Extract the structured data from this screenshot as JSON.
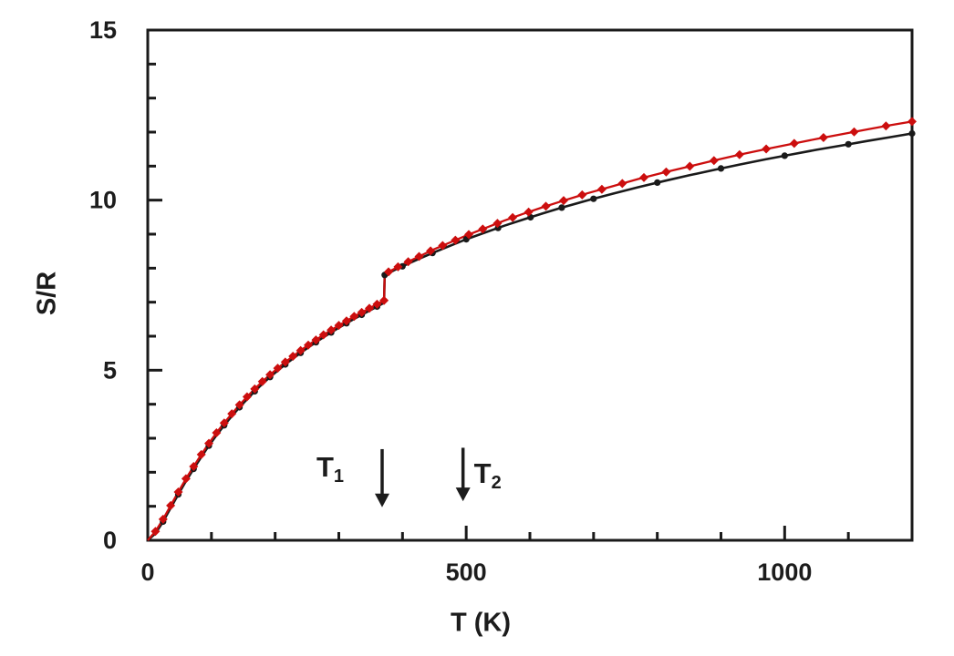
{
  "figure": {
    "background": "#ffffff",
    "frame_color": "#1a1a1a",
    "text_color": "#1c1c1c",
    "accent_red": "#cc0e0e"
  },
  "chart_data": {
    "type": "line",
    "title": "",
    "xlabel": "T (K)",
    "ylabel": "S/R",
    "xlim": [
      0,
      1200
    ],
    "ylim": [
      0,
      15
    ],
    "grid": false,
    "legend": null,
    "x_major_ticks": [
      0,
      500,
      1000
    ],
    "x_tick_labels": [
      "0",
      "500",
      "1000"
    ],
    "x_minor_step": 100,
    "y_major_ticks": [
      0,
      5,
      10,
      15
    ],
    "y_tick_labels": [
      "0",
      "5",
      "10",
      "15"
    ],
    "y_minor_step": 1,
    "annotations": [
      {
        "text": "T",
        "sub": "1",
        "arrow_T": 368,
        "arrow_S_top": 2.68,
        "arrow_S_tip": 0.97,
        "side": "left"
      },
      {
        "text": "T",
        "sub": "2",
        "arrow_T": 495,
        "arrow_S_top": 2.72,
        "arrow_S_tip": 1.15,
        "side": "right"
      }
    ],
    "series": [
      {
        "name": "black-curve",
        "color": "#1a1a1a",
        "marker": "circle",
        "transition_T": 372,
        "branch1": [
          [
            0,
            0
          ],
          [
            12,
            0.2
          ],
          [
            24,
            0.55
          ],
          [
            36,
            0.95
          ],
          [
            48,
            1.35
          ],
          [
            60,
            1.74
          ],
          [
            72,
            2.1
          ],
          [
            84,
            2.45
          ],
          [
            96,
            2.78
          ],
          [
            108,
            3.09
          ],
          [
            120,
            3.38
          ],
          [
            132,
            3.65
          ],
          [
            144,
            3.91
          ],
          [
            156,
            4.15
          ],
          [
            168,
            4.38
          ],
          [
            180,
            4.6
          ],
          [
            192,
            4.8
          ],
          [
            204,
            4.99
          ],
          [
            216,
            5.17
          ],
          [
            228,
            5.34
          ],
          [
            240,
            5.51
          ],
          [
            252,
            5.67
          ],
          [
            264,
            5.82
          ],
          [
            276,
            5.97
          ],
          [
            288,
            6.11
          ],
          [
            300,
            6.25
          ],
          [
            312,
            6.38
          ],
          [
            324,
            6.51
          ],
          [
            336,
            6.63
          ],
          [
            348,
            6.75
          ],
          [
            360,
            6.87
          ],
          [
            371,
            6.98
          ]
        ],
        "branch2": [
          [
            372,
            7.8
          ],
          [
            390,
            7.97
          ],
          [
            410,
            8.14
          ],
          [
            430,
            8.31
          ],
          [
            450,
            8.47
          ],
          [
            475,
            8.66
          ],
          [
            500,
            8.85
          ],
          [
            530,
            9.05
          ],
          [
            560,
            9.25
          ],
          [
            590,
            9.43
          ],
          [
            620,
            9.61
          ],
          [
            650,
            9.78
          ],
          [
            690,
            9.99
          ],
          [
            730,
            10.19
          ],
          [
            770,
            10.38
          ],
          [
            810,
            10.56
          ],
          [
            850,
            10.73
          ],
          [
            890,
            10.89
          ],
          [
            930,
            11.05
          ],
          [
            970,
            11.2
          ],
          [
            1010,
            11.34
          ],
          [
            1050,
            11.48
          ],
          [
            1090,
            11.61
          ],
          [
            1130,
            11.74
          ],
          [
            1165,
            11.85
          ],
          [
            1200,
            11.96
          ]
        ],
        "marker_T_branch1": [
          24,
          48,
          72,
          96,
          120,
          144,
          168,
          192,
          216,
          240,
          264,
          288,
          312,
          336,
          360
        ],
        "marker_T_branch2": [
          372,
          400,
          447,
          500,
          550,
          601,
          650,
          700,
          800,
          900,
          1000,
          1100,
          1200
        ]
      },
      {
        "name": "red-curve",
        "color": "#cc0e0e",
        "marker": "diamond",
        "transition_T": 372,
        "branch1": [
          [
            0,
            0
          ],
          [
            12,
            0.26
          ],
          [
            24,
            0.62
          ],
          [
            36,
            1.02
          ],
          [
            48,
            1.42
          ],
          [
            60,
            1.81
          ],
          [
            72,
            2.17
          ],
          [
            84,
            2.52
          ],
          [
            96,
            2.85
          ],
          [
            108,
            3.16
          ],
          [
            120,
            3.45
          ],
          [
            132,
            3.72
          ],
          [
            144,
            3.98
          ],
          [
            156,
            4.22
          ],
          [
            168,
            4.45
          ],
          [
            180,
            4.67
          ],
          [
            192,
            4.87
          ],
          [
            204,
            5.06
          ],
          [
            216,
            5.24
          ],
          [
            228,
            5.41
          ],
          [
            240,
            5.58
          ],
          [
            252,
            5.74
          ],
          [
            264,
            5.89
          ],
          [
            276,
            6.04
          ],
          [
            288,
            6.18
          ],
          [
            300,
            6.32
          ],
          [
            312,
            6.45
          ],
          [
            324,
            6.58
          ],
          [
            336,
            6.7
          ],
          [
            348,
            6.82
          ],
          [
            360,
            6.94
          ],
          [
            371,
            7.05
          ]
        ],
        "branch2": [
          [
            372,
            7.83
          ],
          [
            390,
            8.01
          ],
          [
            410,
            8.2
          ],
          [
            430,
            8.38
          ],
          [
            450,
            8.56
          ],
          [
            475,
            8.76
          ],
          [
            500,
            8.96
          ],
          [
            530,
            9.18
          ],
          [
            560,
            9.4
          ],
          [
            590,
            9.6
          ],
          [
            620,
            9.79
          ],
          [
            650,
            9.97
          ],
          [
            690,
            10.2
          ],
          [
            730,
            10.41
          ],
          [
            770,
            10.62
          ],
          [
            810,
            10.81
          ],
          [
            850,
            10.99
          ],
          [
            890,
            11.17
          ],
          [
            930,
            11.34
          ],
          [
            970,
            11.5
          ],
          [
            1010,
            11.65
          ],
          [
            1050,
            11.8
          ],
          [
            1090,
            11.94
          ],
          [
            1130,
            12.08
          ],
          [
            1165,
            12.2
          ],
          [
            1200,
            12.31
          ]
        ],
        "marker_T_branch1": [
          12,
          24,
          36,
          48,
          60,
          72,
          84,
          96,
          108,
          120,
          132,
          144,
          156,
          168,
          180,
          192,
          204,
          216,
          228,
          240,
          252,
          264,
          276,
          288,
          300,
          312,
          324,
          336,
          348,
          360,
          371
        ],
        "marker_T_branch2": [
          378,
          393,
          409,
          426,
          444,
          463,
          483,
          504,
          526,
          549,
          573,
          598,
          625,
          653,
          682,
          713,
          745,
          779,
          814,
          851,
          889,
          929,
          971,
          1015,
          1061,
          1109,
          1159,
          1200
        ]
      }
    ]
  }
}
